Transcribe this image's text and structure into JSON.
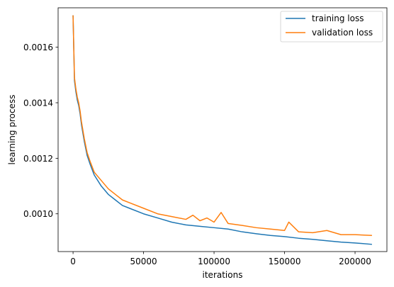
{
  "chart_data": {
    "type": "line",
    "title": "",
    "xlabel": "iterations",
    "ylabel": "learning process",
    "xlim": [
      -10600,
      222600
    ],
    "ylim": [
      0.000864,
      0.001742
    ],
    "x_ticks": [
      0,
      50000,
      100000,
      150000,
      200000
    ],
    "x_tick_labels": [
      "0",
      "50000",
      "100000",
      "150000",
      "200000"
    ],
    "y_ticks": [
      0.001,
      0.0012,
      0.0014,
      0.0016
    ],
    "y_tick_labels": [
      "0.0010",
      "0.0012",
      "0.0014",
      "0.0016"
    ],
    "grid": false,
    "legend_position": "top-right",
    "series": [
      {
        "name": "training loss",
        "color": "#1f77b4",
        "x": [
          0,
          1000,
          2000,
          3000,
          4000,
          5000,
          6000,
          8000,
          10000,
          12000,
          15000,
          20000,
          25000,
          30000,
          35000,
          40000,
          50000,
          60000,
          70000,
          80000,
          90000,
          100000,
          110000,
          120000,
          130000,
          140000,
          150000,
          160000,
          170000,
          180000,
          190000,
          200000,
          212000
        ],
        "y": [
          0.001715,
          0.00148,
          0.00144,
          0.00141,
          0.00139,
          0.00136,
          0.00132,
          0.00126,
          0.00121,
          0.00118,
          0.00114,
          0.0011,
          0.00107,
          0.00105,
          0.00103,
          0.00102,
          0.001,
          0.000985,
          0.00097,
          0.00096,
          0.000955,
          0.00095,
          0.000945,
          0.000935,
          0.000928,
          0.000922,
          0.000918,
          0.000912,
          0.000908,
          0.000903,
          0.000898,
          0.000895,
          0.00089
        ]
      },
      {
        "name": "validation loss",
        "color": "#ff7f0e",
        "x": [
          0,
          1000,
          2000,
          3000,
          4000,
          5000,
          6000,
          8000,
          10000,
          12000,
          15000,
          20000,
          25000,
          30000,
          35000,
          40000,
          50000,
          60000,
          70000,
          80000,
          85000,
          90000,
          95000,
          100000,
          105000,
          110000,
          120000,
          130000,
          140000,
          150000,
          153000,
          160000,
          170000,
          180000,
          190000,
          200000,
          212000
        ],
        "y": [
          0.001715,
          0.00149,
          0.00145,
          0.00142,
          0.0014,
          0.00137,
          0.00133,
          0.00127,
          0.00122,
          0.00119,
          0.00115,
          0.00112,
          0.00109,
          0.00107,
          0.00105,
          0.00104,
          0.00102,
          0.001,
          0.00099,
          0.00098,
          0.000995,
          0.000975,
          0.000985,
          0.00097,
          0.001005,
          0.000965,
          0.000958,
          0.00095,
          0.000945,
          0.00094,
          0.00097,
          0.000935,
          0.000932,
          0.00094,
          0.000925,
          0.000925,
          0.000922
        ]
      }
    ]
  }
}
